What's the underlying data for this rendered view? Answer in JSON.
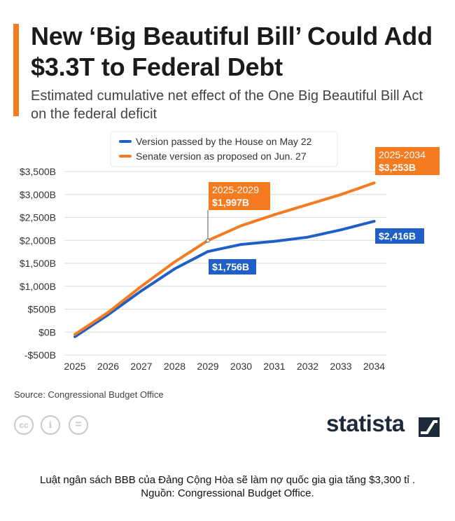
{
  "header": {
    "title": "New ‘Big Beautiful Bill’ Could Add $3.3T to Federal Debt",
    "subtitle": "Estimated cumulative net effect of the One Big Beautiful Bill Act on the federal deficit"
  },
  "colors": {
    "accent": "#f47b20",
    "house": "#1f5fc6",
    "senate": "#f47b20"
  },
  "chart_data": {
    "type": "line",
    "title": "New ‘Big Beautiful Bill’ Could Add $3.3T to Federal Debt",
    "subtitle": "Estimated cumulative net effect of the One Big Beautiful Bill Act on the federal deficit",
    "x": [
      "2025",
      "2026",
      "2027",
      "2028",
      "2029",
      "2030",
      "2031",
      "2032",
      "2033",
      "2034"
    ],
    "ylim": [
      -500,
      3500
    ],
    "yticks": [
      3500,
      3000,
      2500,
      2000,
      1500,
      1000,
      500,
      0,
      -500
    ],
    "ytick_labels": [
      "$3,500B",
      "$3,000B",
      "$2,500B",
      "$2,000B",
      "$1,500B",
      "$1,000B",
      "$500B",
      "$0B",
      "-$500B"
    ],
    "grid": true,
    "legend_position": "top",
    "series": [
      {
        "name": "Version passed by the House on May 22",
        "color": "#1f5fc6",
        "values": [
          -100,
          380,
          900,
          1380,
          1756,
          1910,
          1980,
          2070,
          2230,
          2416
        ]
      },
      {
        "name": "Senate version as proposed on Jun. 27",
        "color": "#f47b20",
        "values": [
          -50,
          430,
          1000,
          1530,
          1997,
          2320,
          2560,
          2780,
          3000,
          3253
        ]
      }
    ],
    "annotations": [
      {
        "series": 1,
        "index": 4,
        "period": "2025-2029",
        "value": "$1,997B"
      },
      {
        "series": 1,
        "index": 9,
        "period": "2025-2034",
        "value": "$3,253B"
      },
      {
        "series": 0,
        "index": 4,
        "value": "$1,756B"
      },
      {
        "series": 0,
        "index": 9,
        "value": "$2,416B"
      }
    ]
  },
  "footer": {
    "source": "Source: Congressional Budget Office",
    "license_icons": [
      "cc-icon",
      "person-icon",
      "equals-icon"
    ],
    "license_glyphs": [
      "cc",
      "i",
      "="
    ],
    "brand": "statista"
  },
  "caption": {
    "line1": "Luật ngân sách BBB của Đảng Cộng Hòa sẽ làm nợ quốc gia gia tăng $3,300 tỉ .",
    "line2": "Nguồn: Congressional Budget Office."
  }
}
